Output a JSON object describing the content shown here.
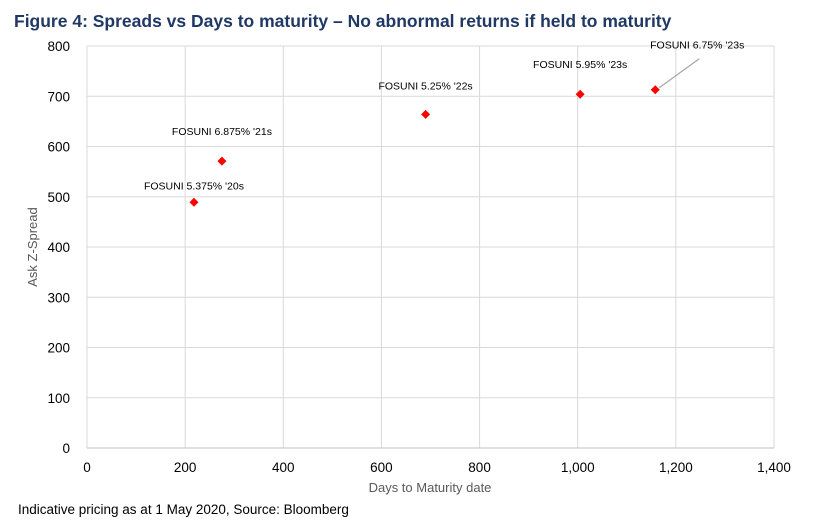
{
  "title": "Figure 4: Spreads vs Days to maturity – No abnormal returns if held to maturity",
  "source": "Indicative pricing as at 1 May 2020, Source: Bloomberg",
  "chart_data": {
    "type": "scatter",
    "xlabel": "Days to Maturity date",
    "ylabel": "Ask Z-Spread",
    "xlim": [
      0,
      1400
    ],
    "ylim": [
      0,
      800
    ],
    "x_ticks": [
      0,
      200,
      400,
      600,
      800,
      1000,
      1200,
      1400
    ],
    "x_tick_labels": [
      "0",
      "200",
      "400",
      "600",
      "800",
      "1,000",
      "1,200",
      "1,400"
    ],
    "y_ticks": [
      0,
      100,
      200,
      300,
      400,
      500,
      600,
      700,
      800
    ],
    "y_tick_labels": [
      "0",
      "100",
      "200",
      "300",
      "400",
      "500",
      "600",
      "700",
      "800"
    ],
    "grid": true,
    "marker_color": "#ff0000",
    "points": [
      {
        "label": "FOSUNI 5.375% '20s",
        "x": 218,
        "y": 489
      },
      {
        "label": "FOSUNI 6.875% '21s",
        "x": 275,
        "y": 571
      },
      {
        "label": "FOSUNI 5.25% '22s",
        "x": 690,
        "y": 664
      },
      {
        "label": "FOSUNI 5.95% '23s",
        "x": 1005,
        "y": 704
      },
      {
        "label": "FOSUNI 6.75% '23s",
        "x": 1158,
        "y": 713
      }
    ]
  }
}
